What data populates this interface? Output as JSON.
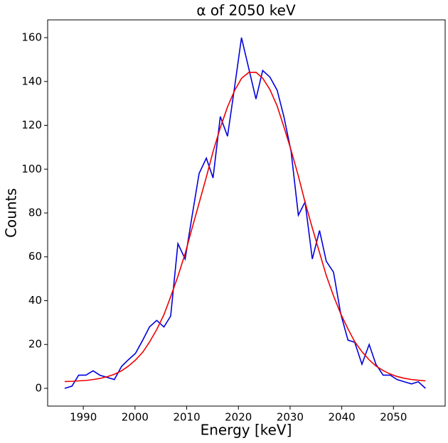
{
  "chart_data": {
    "type": "line",
    "title": "α of 2050 keV",
    "x_label": "Energy [keV]",
    "y_label": "Counts",
    "x": [
      1986.4,
      1987.8,
      1989.1,
      1990.5,
      1991.9,
      1993.2,
      1994.6,
      1996.0,
      1997.4,
      1998.7,
      2000.1,
      2001.5,
      2002.8,
      2004.2,
      2005.6,
      2006.9,
      2008.3,
      2009.7,
      2011.0,
      2012.4,
      2013.8,
      2015.1,
      2016.5,
      2017.9,
      2019.3,
      2020.6,
      2022.0,
      2023.4,
      2024.7,
      2026.1,
      2027.5,
      2028.8,
      2030.2,
      2031.6,
      2032.9,
      2034.3,
      2035.7,
      2037.0,
      2038.4,
      2039.8,
      2041.2,
      2042.5,
      2043.9,
      2045.3,
      2046.6,
      2048.0,
      2049.4,
      2050.7,
      2052.1,
      2053.5,
      2054.8,
      2056.2
    ],
    "series": [
      {
        "color": "#0000dd",
        "values": [
          0,
          1,
          6,
          6,
          8,
          6,
          5,
          4,
          10,
          13,
          16,
          22,
          28,
          31,
          28,
          33,
          66,
          59,
          78,
          98,
          105,
          96,
          124,
          115,
          138,
          160,
          146,
          132,
          145,
          142,
          136,
          124,
          108,
          79,
          85,
          59,
          72,
          58,
          53,
          34,
          22,
          21,
          11,
          20,
          11,
          6,
          6,
          4,
          3,
          2,
          3,
          0
        ]
      },
      {
        "color": "#ee0000",
        "values": [
          3.1,
          3.2,
          3.4,
          3.6,
          4.0,
          4.5,
          5.3,
          6.4,
          8.0,
          10.1,
          12.9,
          16.5,
          21.1,
          26.8,
          33.6,
          41.8,
          51.1,
          61.5,
          72.7,
          84.5,
          96.4,
          108.0,
          118.9,
          128.4,
          136.0,
          141.4,
          144.1,
          144.2,
          141.5,
          136.3,
          128.8,
          119.3,
          108.6,
          96.9,
          84.9,
          73.2,
          61.9,
          51.5,
          42.2,
          34.0,
          27.1,
          21.3,
          16.7,
          13.0,
          10.2,
          8.1,
          6.5,
          5.4,
          4.6,
          4.0,
          3.7,
          3.4
        ]
      }
    ],
    "xlim": [
      1983.1,
      2060.0
    ],
    "ylim": [
      -8.1,
      168.1
    ],
    "xticks": [
      1990,
      2000,
      2010,
      2020,
      2030,
      2040,
      2050
    ],
    "yticks": [
      0,
      20,
      40,
      60,
      80,
      100,
      120,
      140,
      160
    ]
  }
}
